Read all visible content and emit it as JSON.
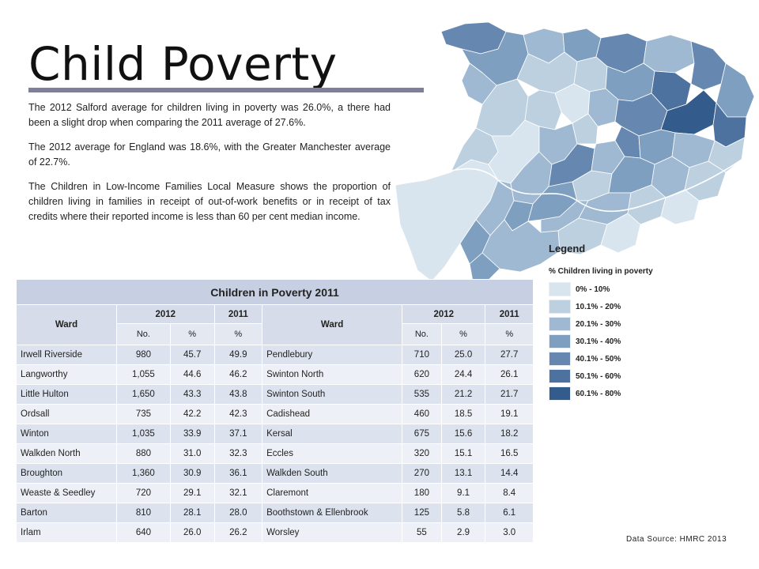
{
  "title": "Child Poverty",
  "intro": [
    "The 2012 Salford average for children living in poverty was 26.0%, a there had been a slight drop when comparing the 2011 average of 27.6%.",
    "The 2012 average for England was 18.6%, with the Greater Manchester average of 22.7%.",
    "The Children in Low-Income Families Local Measure shows the proportion of children living in families in receipt of out-of-work benefits or in receipt of tax credits where their reported income is less than 60 per cent median income."
  ],
  "legend": {
    "title": "Legend",
    "subtitle": "% Children living in poverty",
    "items": [
      {
        "label": "0% - 10%",
        "color": "#d9e5ee"
      },
      {
        "label": "10.1% - 20%",
        "color": "#bcd0e0"
      },
      {
        "label": "20.1% - 30%",
        "color": "#9fb9d2"
      },
      {
        "label": "30.1% - 40%",
        "color": "#7f9fc0"
      },
      {
        "label": "40.1% - 50%",
        "color": "#6688b0"
      },
      {
        "label": "50.1% - 60%",
        "color": "#4e72a0"
      },
      {
        "label": "60.1% - 80%",
        "color": "#335c8c"
      }
    ]
  },
  "source": "Data Source: HMRC  2013",
  "table": {
    "caption": "Children in Poverty 2011",
    "ward_header": "Ward",
    "year_2012": "2012",
    "year_2011": "2011",
    "sub_no": "No.",
    "sub_pct": "%",
    "left": [
      {
        "ward": "Irwell Riverside",
        "no": "980",
        "p12": "45.7",
        "p11": "49.9"
      },
      {
        "ward": "Langworthy",
        "no": "1,055",
        "p12": "44.6",
        "p11": "46.2"
      },
      {
        "ward": "Little Hulton",
        "no": "1,650",
        "p12": "43.3",
        "p11": "43.8"
      },
      {
        "ward": "Ordsall",
        "no": "735",
        "p12": "42.2",
        "p11": "42.3"
      },
      {
        "ward": "Winton",
        "no": "1,035",
        "p12": "33.9",
        "p11": "37.1"
      },
      {
        "ward": "Walkden North",
        "no": "880",
        "p12": "31.0",
        "p11": "32.3"
      },
      {
        "ward": "Broughton",
        "no": "1,360",
        "p12": "30.9",
        "p11": "36.1"
      },
      {
        "ward": "Weaste & Seedley",
        "no": "720",
        "p12": "29.1",
        "p11": "32.1"
      },
      {
        "ward": "Barton",
        "no": "810",
        "p12": "28.1",
        "p11": "28.0"
      },
      {
        "ward": "Irlam",
        "no": "640",
        "p12": "26.0",
        "p11": "26.2"
      }
    ],
    "right": [
      {
        "ward": "Pendlebury",
        "no": "710",
        "p12": "25.0",
        "p11": "27.7"
      },
      {
        "ward": "Swinton North",
        "no": "620",
        "p12": "24.4",
        "p11": "26.1"
      },
      {
        "ward": "Swinton South",
        "no": "535",
        "p12": "21.2",
        "p11": "21.7"
      },
      {
        "ward": "Cadishead",
        "no": "460",
        "p12": "18.5",
        "p11": "19.1"
      },
      {
        "ward": "Kersal",
        "no": "675",
        "p12": "15.6",
        "p11": "18.2"
      },
      {
        "ward": "Eccles",
        "no": "320",
        "p12": "15.1",
        "p11": "16.5"
      },
      {
        "ward": "Walkden South",
        "no": "270",
        "p12": "13.1",
        "p11": "14.4"
      },
      {
        "ward": "Claremont",
        "no": "180",
        "p12": "9.1",
        "p11": "8.4"
      },
      {
        "ward": "Boothstown & Ellenbrook",
        "no": "125",
        "p12": "5.8",
        "p11": "6.1"
      },
      {
        "ward": "Worsley",
        "no": "55",
        "p12": "2.9",
        "p11": "3.0"
      }
    ]
  }
}
